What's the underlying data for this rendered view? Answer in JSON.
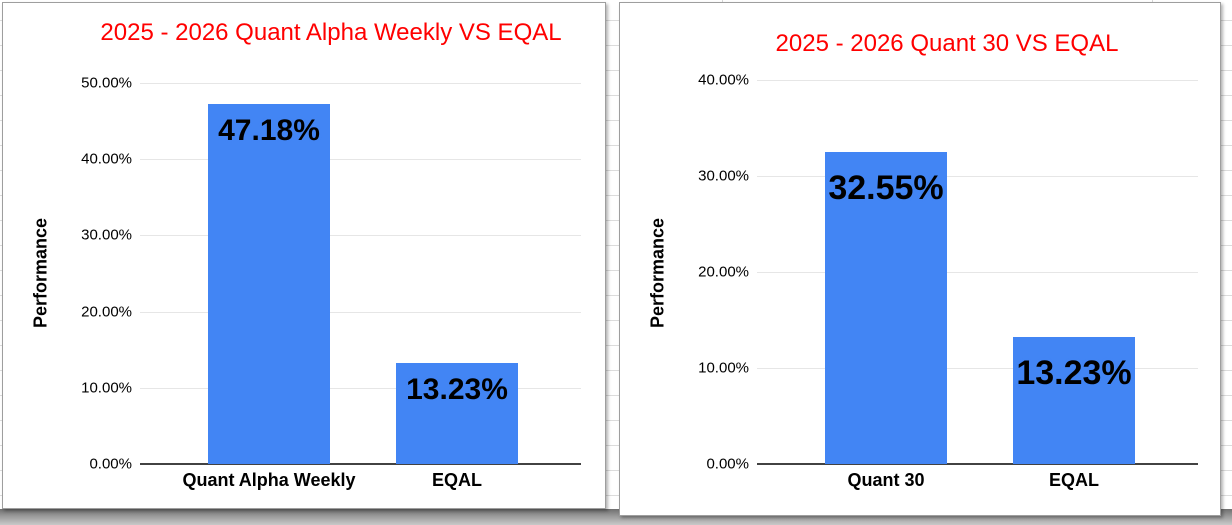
{
  "chart_data": [
    {
      "type": "bar",
      "title": "2025 - 2026 Quant Alpha Weekly VS EQAL",
      "title_color": "#ff0000",
      "ylabel": "Performance",
      "xlabel": "",
      "categories": [
        "Quant Alpha Weekly",
        "EQAL"
      ],
      "values": [
        47.18,
        13.23
      ],
      "value_labels": [
        "47.18%",
        "13.23%"
      ],
      "ytick_labels": [
        "50.00%",
        "40.00%",
        "30.00%",
        "20.00%",
        "10.00%",
        "0.00%"
      ],
      "ytick_values": [
        50,
        40,
        30,
        20,
        10,
        0
      ],
      "ylim": [
        0,
        50
      ],
      "bar_color": "#4285f4",
      "grid": true,
      "legend": "none"
    },
    {
      "type": "bar",
      "title": "2025 - 2026 Quant 30 VS EQAL",
      "title_color": "#ff0000",
      "ylabel": "Performance",
      "xlabel": "",
      "categories": [
        "Quant 30",
        "EQAL"
      ],
      "values": [
        32.55,
        13.23
      ],
      "value_labels": [
        "32.55%",
        "13.23%"
      ],
      "ytick_labels": [
        "40.00%",
        "30.00%",
        "20.00%",
        "10.00%",
        "0.00%"
      ],
      "ytick_values": [
        40,
        30,
        20,
        10,
        0
      ],
      "ylim": [
        0,
        40
      ],
      "bar_color": "#4285f4",
      "grid": true,
      "legend": "none"
    }
  ]
}
